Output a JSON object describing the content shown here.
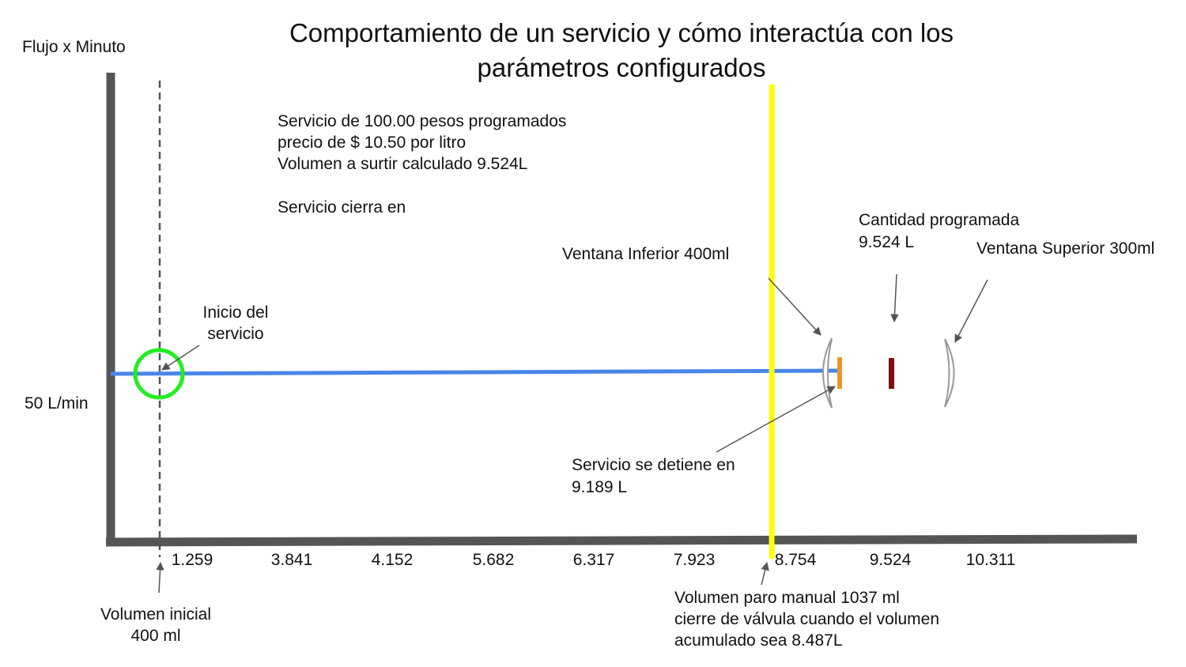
{
  "title": {
    "line1": "Comportamiento de un servicio y cómo interactúa con los",
    "line2": "parámetros configurados"
  },
  "y_axis": {
    "label": "Flujo x Minuto",
    "value_label": "50 L/min"
  },
  "x_ticks": [
    "1.259",
    "3.841",
    "4.152",
    "5.682",
    "6.317",
    "7.923",
    "8.754",
    "9.524",
    "10.311"
  ],
  "info": {
    "line1": "Servicio de 100.00 pesos programados",
    "line2": "precio de $ 10.50 por litro",
    "line3": "Volumen a surtir calculado 9.524L",
    "line4": "Servicio cierra en"
  },
  "annotations": {
    "start": {
      "line1": "Inicio del",
      "line2": "servicio"
    },
    "lower_window": "Ventana Inferior 400ml",
    "programmed": {
      "line1": "Cantidad programada",
      "line2": "9.524 L"
    },
    "upper_window": "Ventana Superior 300ml",
    "stops": {
      "line1": "Servicio se detiene en",
      "line2": "9.189 L"
    },
    "initial_volume": {
      "line1": "Volumen inicial",
      "line2": "400 ml"
    },
    "manual_stop": {
      "line1": "Volumen paro manual 1037 ml",
      "line2": "cierre de válvula cuando el volumen",
      "line3": "acumulado sea 8.487L"
    }
  },
  "colors": {
    "axis": "#555555",
    "flow_line": "#4a86e8",
    "start_circle": "#22ee22",
    "cutoff_line": "#ffff00",
    "stop_marker": "#f29419",
    "target_marker": "#8b0a0a",
    "window_brackets": "#999999",
    "arrows": "#555555"
  }
}
